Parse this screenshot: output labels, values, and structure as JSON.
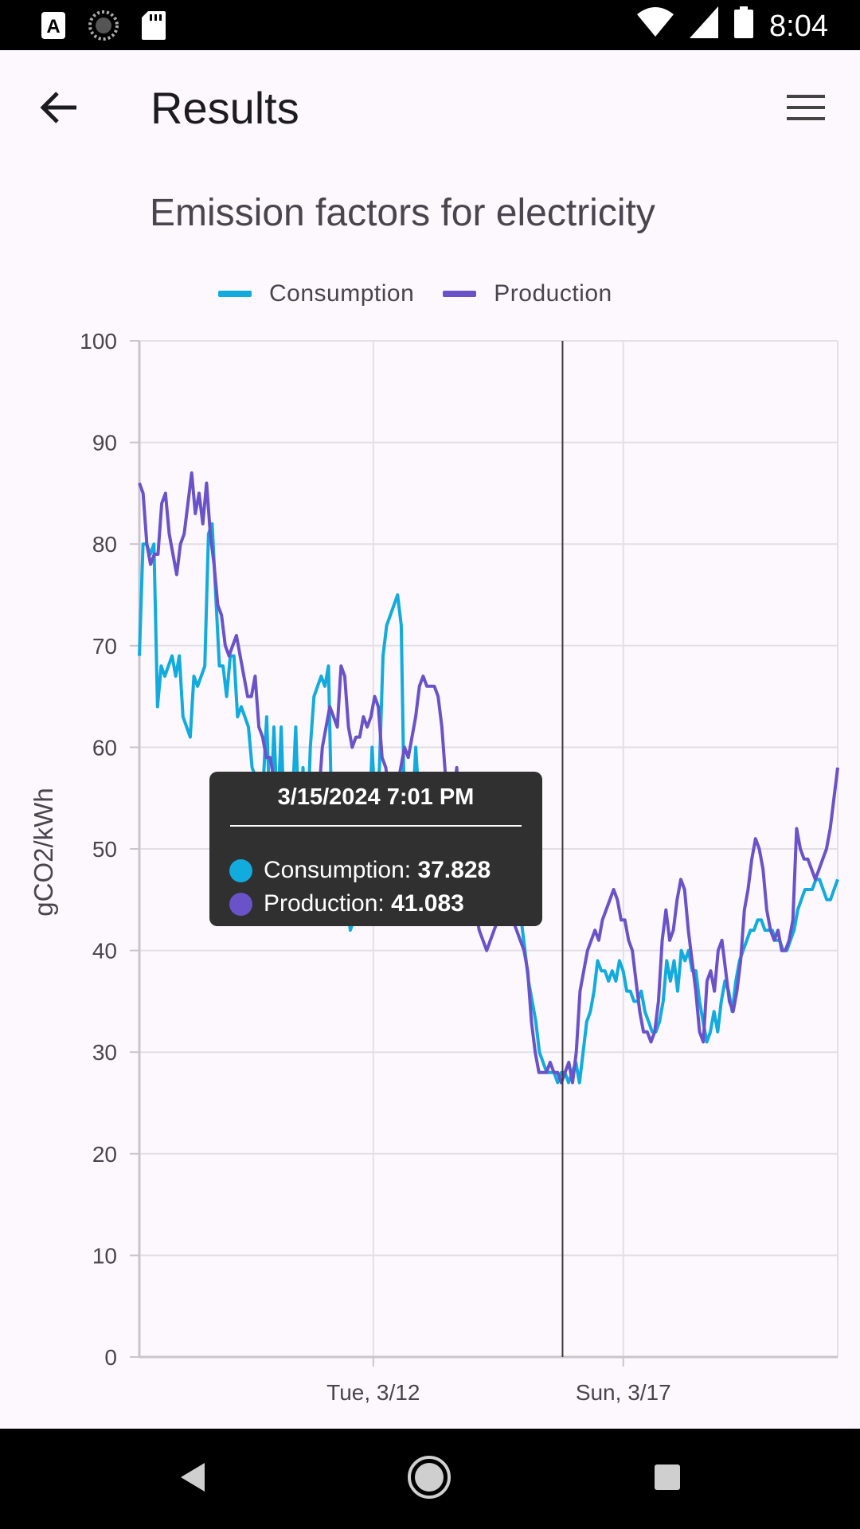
{
  "status_bar": {
    "time": "8:04",
    "icons": [
      "accessibility-icon",
      "sync-icon",
      "sd-card-icon",
      "wifi-icon",
      "signal-icon",
      "battery-icon"
    ]
  },
  "app_bar": {
    "title": "Results",
    "back_icon": "arrow-back-icon",
    "menu_icon": "hamburger-menu-icon"
  },
  "chart_data": {
    "type": "line",
    "title": "Emission factors for electricity",
    "ylabel": "gCO2/kWh",
    "xlabel": "",
    "ylim": [
      0,
      100
    ],
    "yticks": [
      "0",
      "10",
      "20",
      "30",
      "40",
      "50",
      "60",
      "70",
      "80",
      "90",
      "100"
    ],
    "xticks": [
      {
        "label": "Tue, 3/12",
        "t": 0.335
      },
      {
        "label": "Sun, 3/17",
        "t": 0.693
      }
    ],
    "grid": true,
    "legend_position": "top",
    "crosshair_t": 0.606,
    "series": [
      {
        "name": "Consumption",
        "color": "#11abde",
        "values": [
          69,
          80,
          80,
          79,
          80,
          64,
          68,
          67,
          68,
          69,
          67,
          69,
          63,
          62,
          61,
          67,
          66,
          67,
          68,
          81,
          82,
          75,
          68,
          68,
          65,
          69,
          69,
          63,
          64,
          63,
          62,
          58,
          57,
          57,
          56,
          63,
          52,
          62,
          53,
          62,
          51,
          52,
          54,
          62,
          51,
          58,
          50,
          60,
          65,
          66,
          67,
          66,
          68,
          51,
          52,
          48,
          47,
          45,
          42,
          43,
          45,
          48,
          50,
          51,
          60,
          53,
          58,
          69,
          72,
          73,
          74,
          75,
          72,
          51,
          52,
          53,
          60,
          54,
          52,
          51,
          52,
          55,
          56,
          55,
          53,
          52,
          51,
          53,
          54,
          52,
          51,
          50,
          49,
          48,
          47,
          46,
          45,
          47,
          48,
          47,
          46,
          47,
          48,
          46,
          45,
          43,
          40,
          37,
          35,
          33,
          30,
          29,
          28,
          28,
          28,
          27,
          28,
          28,
          27,
          28,
          29,
          27,
          30,
          33,
          34,
          36,
          39,
          38,
          38,
          37,
          38,
          37,
          39,
          38,
          36,
          36,
          35,
          35,
          36,
          34,
          33,
          32,
          32,
          33,
          35,
          39,
          37,
          39,
          36,
          40,
          39,
          40,
          38,
          38,
          35,
          33,
          31,
          32,
          34,
          32,
          35,
          37,
          36,
          34,
          37,
          39,
          40,
          41,
          42,
          42,
          43,
          43,
          42,
          42,
          42,
          41,
          41,
          40,
          40,
          41,
          42,
          44,
          45,
          46,
          46,
          46,
          47,
          47,
          46,
          45,
          45,
          46,
          47
        ]
      },
      {
        "name": "Production",
        "color": "#6a52c9",
        "values": [
          86,
          85,
          80,
          78,
          79,
          79,
          84,
          85,
          81,
          79,
          77,
          80,
          81,
          84,
          87,
          83,
          85,
          82,
          86,
          81,
          78,
          74,
          73,
          70,
          69,
          70,
          71,
          69,
          67,
          65,
          65,
          67,
          62,
          61,
          59,
          59,
          57,
          53,
          54,
          56,
          56,
          55,
          50,
          50,
          51,
          52,
          50,
          48,
          55,
          60,
          62,
          64,
          63,
          62,
          68,
          67,
          62,
          60,
          61,
          61,
          63,
          62,
          63,
          65,
          64,
          59,
          58,
          55,
          54,
          56,
          58,
          60,
          59,
          61,
          63,
          66,
          67,
          66,
          66,
          66,
          65,
          62,
          57,
          56,
          55,
          58,
          52,
          49,
          48,
          45,
          44,
          42,
          41,
          40,
          41,
          42,
          43,
          44,
          45,
          44,
          43,
          42,
          41,
          40,
          38,
          33,
          30,
          28,
          28,
          28,
          29,
          28,
          28,
          27,
          28,
          29,
          27,
          30,
          36,
          38,
          40,
          41,
          42,
          41,
          43,
          44,
          45,
          46,
          45,
          43,
          43,
          41,
          40,
          37,
          34,
          32,
          32,
          31,
          32,
          35,
          41,
          44,
          41,
          42,
          45,
          47,
          46,
          42,
          39,
          36,
          32,
          31,
          37,
          38,
          36,
          40,
          41,
          38,
          35,
          34,
          36,
          39,
          44,
          46,
          49,
          51,
          50,
          48,
          44,
          42,
          41,
          42,
          40,
          40,
          41,
          43,
          52,
          50,
          49,
          49,
          48,
          47,
          48,
          49,
          50,
          52,
          55,
          58
        ]
      }
    ]
  },
  "tooltip": {
    "title": "3/15/2024 7:01 PM",
    "rows": [
      {
        "label": "Consumption: ",
        "value": "37.828",
        "color": "#11abde"
      },
      {
        "label": "Production: ",
        "value": "41.083",
        "color": "#6a52c9"
      }
    ]
  },
  "nav_bar": {
    "icons": [
      "back-triangle-icon",
      "home-circle-icon",
      "recents-square-icon"
    ]
  }
}
